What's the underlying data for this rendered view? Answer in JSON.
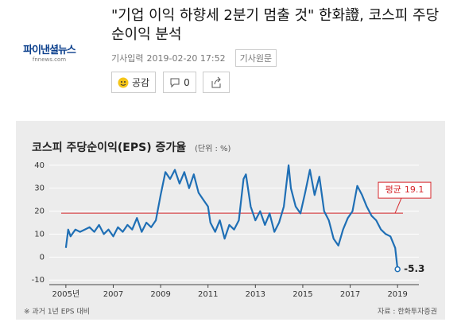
{
  "header": {
    "logo": "파이낸셜뉴스",
    "logo_sub": "fnnews.com",
    "title": "\"기업 이익 하향세 2분기 멈출 것\" 한화證, 코스피 주당순이익 분석"
  },
  "meta": {
    "label": "기사입력",
    "datetime": "2019-02-20 17:52",
    "source_button": "기사원문"
  },
  "reactions": {
    "like_label": "공감",
    "comment_count": 0
  },
  "chart_data": {
    "type": "line",
    "title": "코스피 주당순이익(EPS) 증가율",
    "unit": "(단위 : %)",
    "note": "※ 과거 1년 EPS 대비",
    "source": "자료 : 한화투자증권",
    "x": [
      2005.0,
      2005.1,
      2005.2,
      2005.4,
      2005.6,
      2005.8,
      2006.0,
      2006.2,
      2006.4,
      2006.6,
      2006.8,
      2007.0,
      2007.2,
      2007.4,
      2007.6,
      2007.8,
      2008.0,
      2008.2,
      2008.4,
      2008.6,
      2008.8,
      2009.0,
      2009.2,
      2009.4,
      2009.6,
      2009.8,
      2010.0,
      2010.2,
      2010.4,
      2010.6,
      2010.8,
      2011.0,
      2011.1,
      2011.3,
      2011.5,
      2011.7,
      2011.9,
      2012.1,
      2012.3,
      2012.5,
      2012.6,
      2012.8,
      2013.0,
      2013.2,
      2013.4,
      2013.6,
      2013.8,
      2014.0,
      2014.2,
      2014.4,
      2014.5,
      2014.7,
      2014.9,
      2015.1,
      2015.3,
      2015.5,
      2015.7,
      2015.9,
      2016.1,
      2016.3,
      2016.5,
      2016.7,
      2016.9,
      2017.1,
      2017.3,
      2017.5,
      2017.7,
      2017.9,
      2018.1,
      2018.3,
      2018.5,
      2018.7,
      2018.9,
      2019.0
    ],
    "series": [
      {
        "name": "코스피 주당순이익 증가율",
        "color": "#1f6fb5",
        "values": [
          4,
          12,
          9,
          12,
          11,
          12,
          13,
          11,
          14,
          10,
          12,
          9,
          13,
          11,
          14,
          12,
          17,
          11,
          15,
          13,
          16,
          27,
          37,
          34,
          38,
          32,
          37,
          30,
          36,
          28,
          25,
          22,
          15,
          11,
          16,
          8,
          14,
          12,
          16,
          34,
          36,
          22,
          16,
          20,
          14,
          19,
          11,
          15,
          22,
          40,
          30,
          22,
          19,
          28,
          38,
          27,
          35,
          20,
          16,
          8,
          5,
          12,
          17,
          20,
          31,
          27,
          22,
          18,
          16,
          12,
          10,
          9,
          4,
          -5.3
        ]
      }
    ],
    "average": {
      "label": "평균",
      "value": 19.1,
      "color": "#d6282d"
    },
    "xlim": [
      2004.3,
      2019.9
    ],
    "ylim": [
      -12,
      42
    ],
    "xticks": [
      {
        "value": 2005,
        "label": "2005년"
      },
      2007,
      2009,
      2011,
      2013,
      2015,
      2017,
      2019
    ],
    "yticks": [
      -10,
      0,
      10,
      20,
      30,
      40
    ],
    "grid": true
  }
}
